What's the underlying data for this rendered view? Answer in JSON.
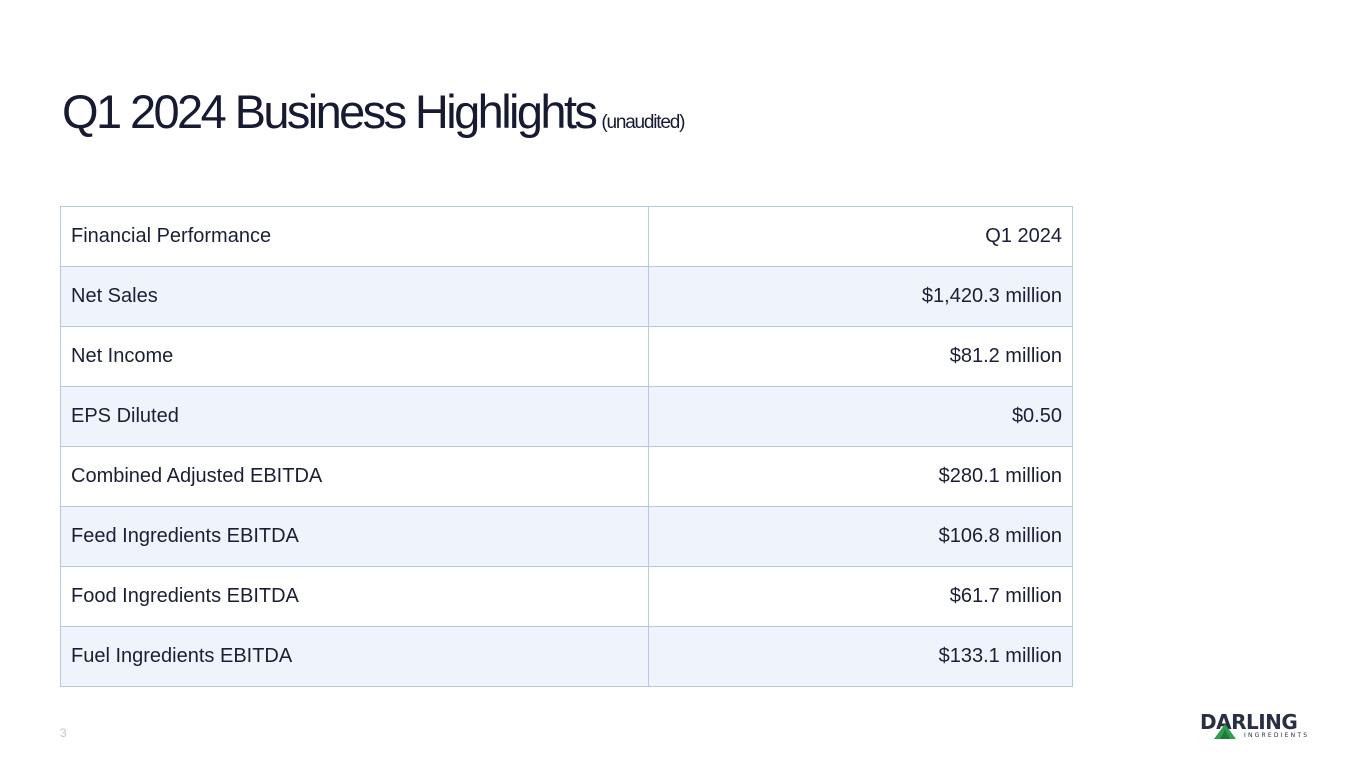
{
  "slide": {
    "title": "Q1 2024 Business Highlights",
    "subtitle": "(unaudited)",
    "page_number": "3"
  },
  "table": {
    "header": {
      "label": "Financial Performance",
      "value": "Q1 2024"
    },
    "rows": [
      {
        "label": "Net Sales",
        "value": "$1,420.3 million"
      },
      {
        "label": "Net Income",
        "value": "$81.2 million"
      },
      {
        "label": "EPS Diluted",
        "value": "$0.50"
      },
      {
        "label": "Combined Adjusted EBITDA",
        "value": "$280.1 million"
      },
      {
        "label": "Feed Ingredients EBITDA",
        "value": "$106.8 million"
      },
      {
        "label": "Food Ingredients EBITDA",
        "value": "$61.7 million"
      },
      {
        "label": "Fuel Ingredients EBITDA",
        "value": "$133.1 million"
      }
    ]
  },
  "logo": {
    "name": "DARLING",
    "tagline": "INGREDIENTS",
    "mark_icon": "green-triangle-icon",
    "mark_color": "#2e9e4f"
  }
}
